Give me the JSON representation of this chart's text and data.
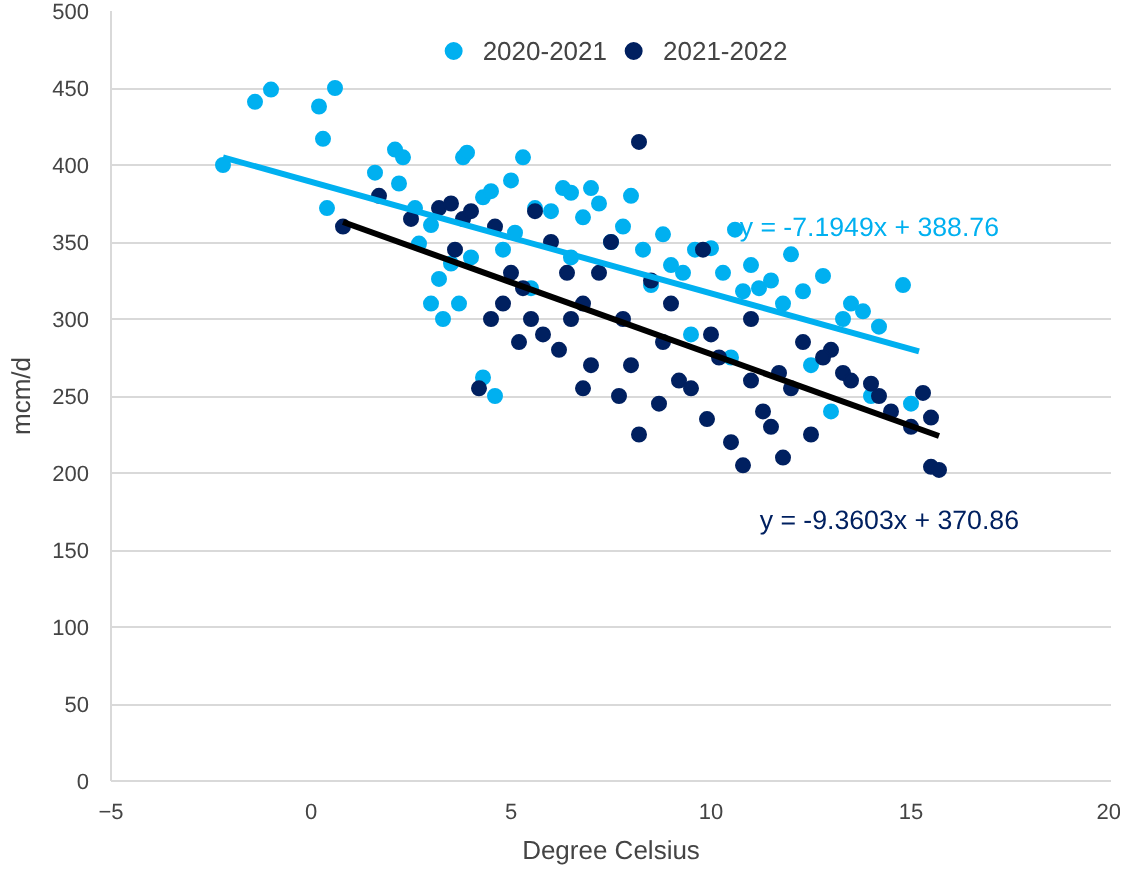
{
  "chart_data": {
    "type": "scatter",
    "xlabel": "Degree Celsius",
    "ylabel": "mcm/d",
    "xlim": [
      -5,
      20
    ],
    "xticks": [
      -5,
      0,
      5,
      10,
      15,
      20
    ],
    "ylim": [
      0,
      500
    ],
    "yticks": [
      0,
      50,
      100,
      150,
      200,
      250,
      300,
      350,
      400,
      450,
      500
    ],
    "grid": "y",
    "legend": "top",
    "marker": "circle",
    "series": [
      {
        "name": "2020-2021",
        "color": "#00b0f0",
        "x": [
          -2.2,
          -1.4,
          -1,
          0.2,
          0.3,
          0.6,
          0.4,
          1.6,
          2.1,
          2.3,
          2.2,
          2.6,
          2.7,
          3.0,
          3.2,
          3.0,
          3.3,
          3.5,
          3.8,
          3.9,
          3.7,
          4.0,
          4.3,
          4.5,
          4.3,
          4.6,
          4.8,
          5.0,
          5.3,
          5.1,
          5.6,
          6.0,
          6.3,
          6.5,
          6.8,
          7.0,
          7.2,
          7.5,
          7.8,
          8.0,
          8.3,
          8.5,
          8.8,
          9.0,
          9.3,
          9.6,
          10.0,
          10.3,
          10.6,
          10.8,
          11.0,
          11.2,
          11.5,
          11.8,
          12.0,
          12.3,
          12.8,
          13.3,
          13.5,
          13.8,
          14.2,
          14.8,
          12.5,
          10.5,
          9.5,
          13.0,
          15.0,
          14.0,
          6.5,
          5.5
        ],
        "values": [
          400,
          441,
          449,
          438,
          417,
          450,
          372,
          395,
          410,
          405,
          388,
          372,
          349,
          361,
          326,
          310,
          300,
          336,
          405,
          408,
          310,
          340,
          379,
          383,
          262,
          250,
          345,
          390,
          405,
          356,
          372,
          370,
          385,
          382,
          366,
          385,
          375,
          350,
          360,
          380,
          345,
          322,
          355,
          335,
          330,
          345,
          346,
          330,
          358,
          318,
          335,
          320,
          325,
          310,
          342,
          318,
          328,
          300,
          310,
          305,
          295,
          322,
          270,
          275,
          290,
          240,
          245,
          250,
          340,
          320
        ]
      },
      {
        "name": "2021-2022",
        "color": "#002060",
        "x": [
          0.8,
          1.7,
          2.5,
          3.2,
          3.5,
          3.8,
          4.0,
          4.2,
          4.5,
          4.8,
          5.0,
          5.3,
          5.5,
          5.8,
          6.0,
          6.2,
          6.5,
          6.8,
          7.0,
          7.2,
          7.5,
          7.8,
          8.0,
          8.2,
          8.5,
          8.8,
          9.0,
          9.2,
          9.5,
          9.8,
          10.0,
          10.2,
          10.5,
          10.8,
          11.0,
          11.3,
          11.5,
          11.8,
          12.0,
          12.3,
          12.5,
          13.0,
          13.3,
          13.5,
          14.0,
          14.5,
          15.0,
          15.3,
          15.5,
          15.7,
          15.5,
          3.6,
          4.6,
          5.2,
          6.4,
          7.7,
          8.7,
          9.9,
          11.7,
          12.8,
          14.2,
          5.6,
          6.8,
          8.2,
          11.0
        ],
        "values": [
          360,
          380,
          365,
          372,
          375,
          365,
          370,
          255,
          300,
          310,
          330,
          320,
          300,
          290,
          350,
          280,
          300,
          310,
          270,
          330,
          350,
          300,
          270,
          415,
          325,
          285,
          310,
          260,
          255,
          345,
          290,
          275,
          220,
          205,
          260,
          240,
          230,
          210,
          255,
          285,
          225,
          280,
          265,
          260,
          258,
          240,
          230,
          252,
          204,
          202,
          236,
          345,
          360,
          285,
          330,
          250,
          245,
          235,
          265,
          275,
          250,
          370,
          255,
          225,
          300
        ]
      },
      {
        "type": "line",
        "marker": "none",
        "color": "#00b0f0",
        "x": [
          -2.2,
          15.2
        ],
        "values": [
          405,
          279
        ]
      },
      {
        "type": "line",
        "marker": "none",
        "color": "#000000",
        "x": [
          0.8,
          15.7
        ],
        "values": [
          363,
          224
        ]
      }
    ],
    "annotations": [
      "y = -7.1949x + 388.76",
      "y = -9.3603x + 370.86"
    ]
  }
}
